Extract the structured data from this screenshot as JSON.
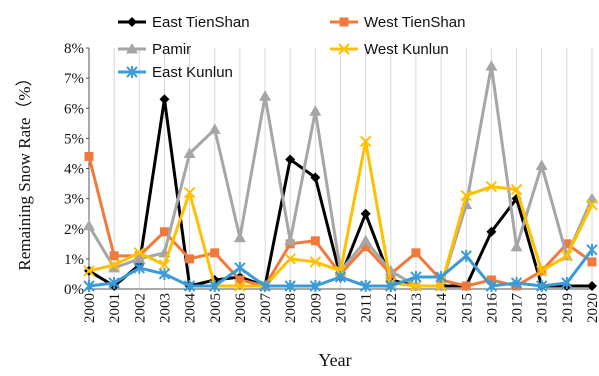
{
  "chart_data": {
    "type": "line",
    "title": "",
    "xlabel": "Year",
    "ylabel": "Remaining Snow Rate（%）",
    "ylim": [
      0,
      8
    ],
    "y_ticks": [
      "0%",
      "1%",
      "2%",
      "3%",
      "4%",
      "5%",
      "6%",
      "7%",
      "8%"
    ],
    "x": [
      "2000",
      "2001",
      "2002",
      "2003",
      "2004",
      "2005",
      "2006",
      "2007",
      "2008",
      "2009",
      "2010",
      "2011",
      "2012",
      "2013",
      "2014",
      "2015",
      "2016",
      "2017",
      "2018",
      "2019",
      "2020"
    ],
    "grid": "vertical",
    "legend_position": "top",
    "series": [
      {
        "name": "East TienShan",
        "color": "#000000",
        "marker": "diamond",
        "values": [
          0.6,
          0.1,
          0.8,
          6.3,
          0.1,
          0.3,
          0.4,
          0.1,
          4.3,
          3.7,
          0.4,
          2.5,
          0.3,
          0.1,
          0.1,
          0.1,
          1.9,
          3.0,
          0.1,
          0.1,
          0.1
        ]
      },
      {
        "name": "West TienShan",
        "color": "#f07a3c",
        "marker": "square",
        "values": [
          4.4,
          1.1,
          1.1,
          1.9,
          1.0,
          1.2,
          0.3,
          0.1,
          1.5,
          1.6,
          0.5,
          1.4,
          0.5,
          1.2,
          0.3,
          0.1,
          0.3,
          0.1,
          0.6,
          1.5,
          0.9
        ]
      },
      {
        "name": "Pamir",
        "color": "#a6a6a6",
        "marker": "triangle",
        "values": [
          2.1,
          0.7,
          1.0,
          1.2,
          4.5,
          5.3,
          1.7,
          6.4,
          1.6,
          5.9,
          0.6,
          1.6,
          0.6,
          0.1,
          0.1,
          2.8,
          7.4,
          1.4,
          4.1,
          1.1,
          3.0
        ]
      },
      {
        "name": "West Kunlun",
        "color": "#ffc000",
        "marker": "x",
        "values": [
          0.6,
          0.8,
          1.2,
          0.8,
          3.2,
          0.1,
          0.1,
          0.1,
          1.0,
          0.9,
          0.6,
          4.9,
          0.2,
          0.1,
          0.1,
          3.1,
          3.4,
          3.3,
          0.6,
          1.1,
          2.8
        ]
      },
      {
        "name": "East Kunlun",
        "color": "#3b9bd8",
        "marker": "asterisk",
        "values": [
          0.1,
          0.2,
          0.7,
          0.5,
          0.1,
          0.1,
          0.7,
          0.1,
          0.1,
          0.1,
          0.4,
          0.1,
          0.1,
          0.4,
          0.4,
          1.1,
          0.1,
          0.2,
          0.1,
          0.2,
          1.3
        ]
      }
    ]
  }
}
